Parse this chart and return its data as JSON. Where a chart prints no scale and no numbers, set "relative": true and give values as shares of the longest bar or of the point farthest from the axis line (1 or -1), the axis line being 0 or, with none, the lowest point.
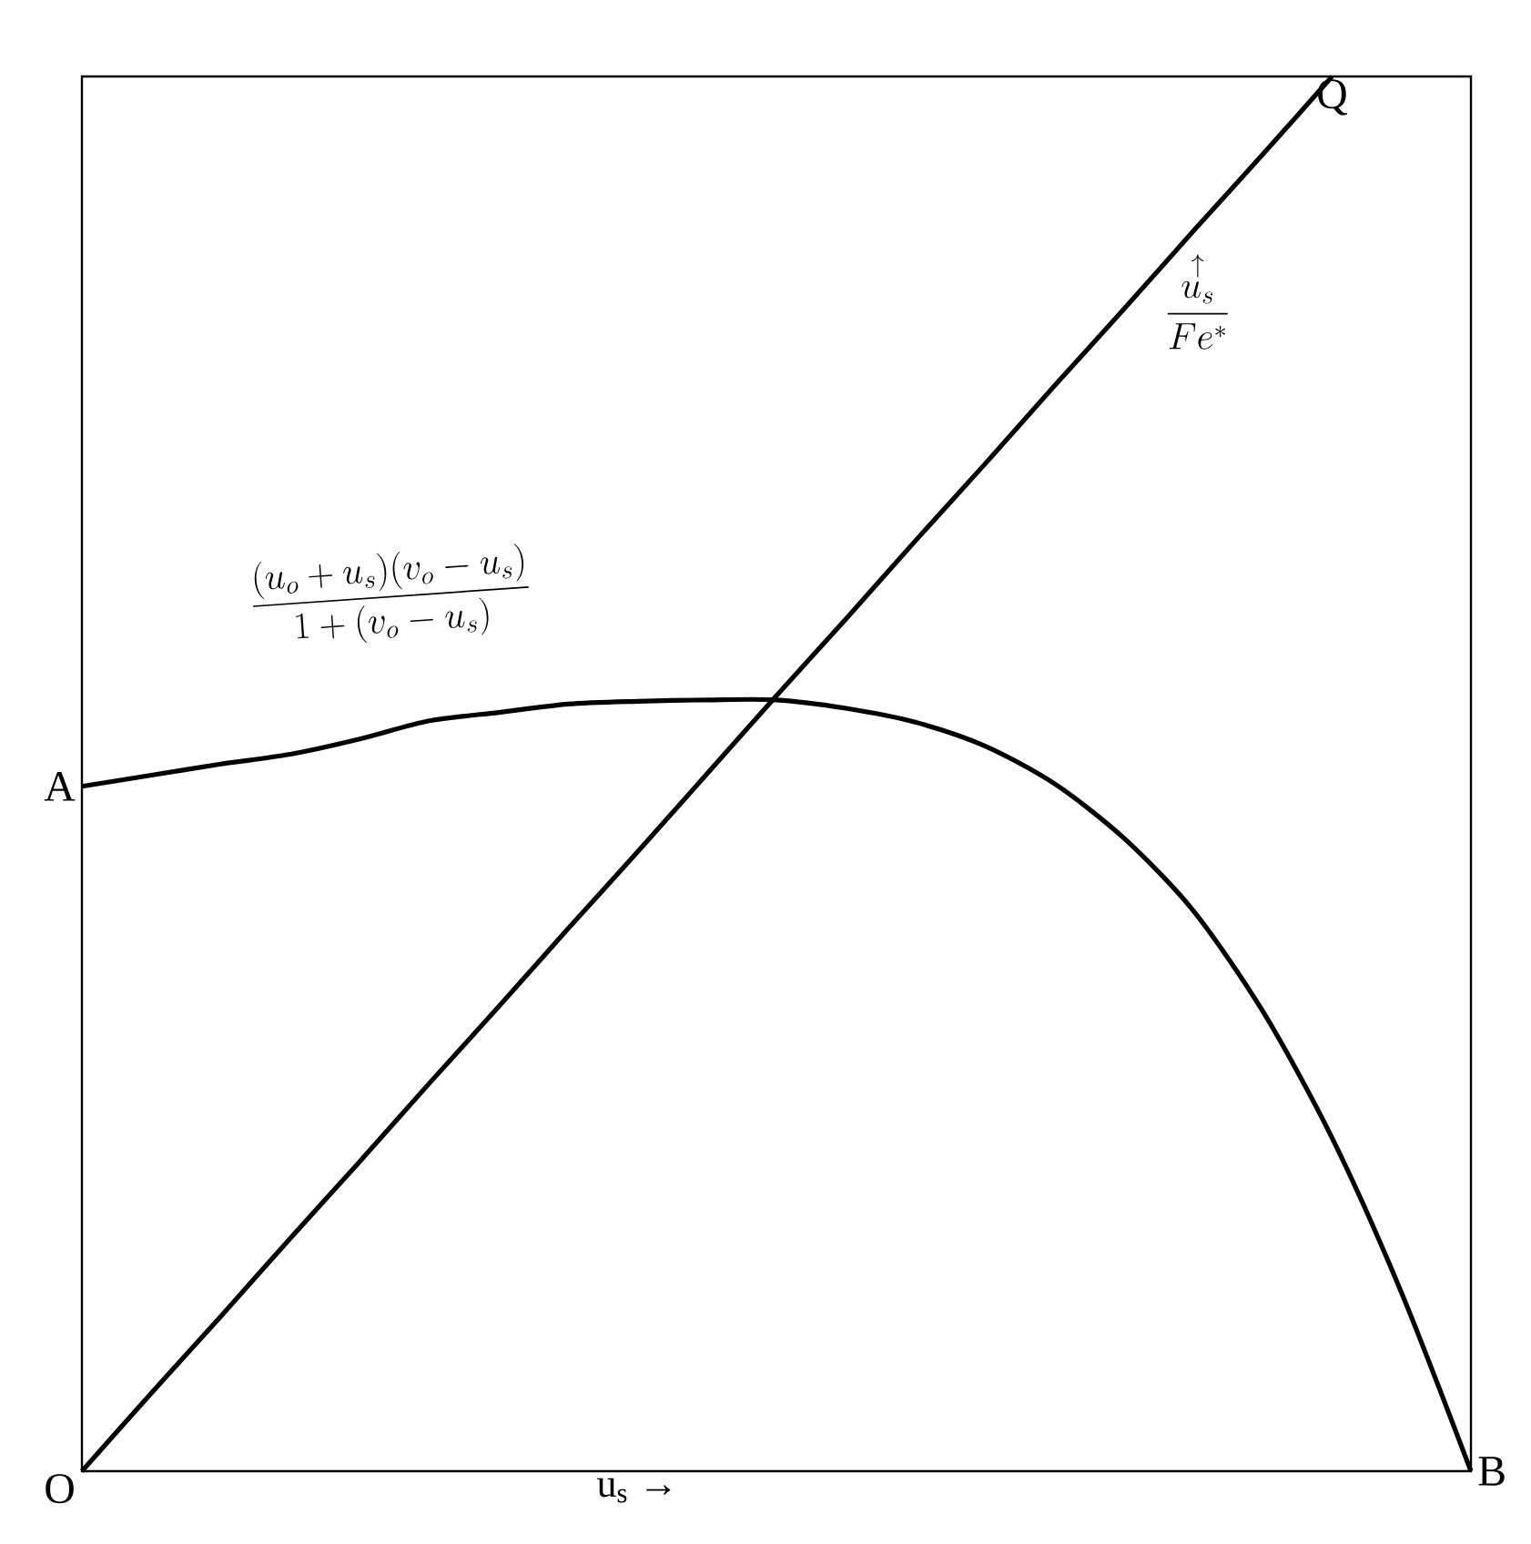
{
  "chart_data": {
    "type": "line",
    "relative": true,
    "xlabel": "u$_{s}$ →",
    "marker": "none",
    "line_style": "solid",
    "categories": [
      null,
      null,
      null,
      null,
      null,
      null,
      null,
      null,
      null,
      null,
      null,
      null,
      null,
      null,
      null,
      null,
      null,
      null,
      null,
      null,
      null
    ],
    "series": [
      {
        "color": "#000000",
        "values": [
          0,
          0.056,
          0.111,
          0.167,
          0.222,
          0.278,
          0.333,
          0.389,
          0.444,
          0.5,
          0.556,
          0.611,
          0.667,
          0.722,
          0.778,
          0.833,
          0.889,
          0.944,
          1,
          null,
          null
        ]
      },
      {
        "color": "#000000",
        "values": [
          0.491,
          0.499,
          0.507,
          0.514,
          0.525,
          0.538,
          0.544,
          0.55,
          0.552,
          0.553,
          0.553,
          0.547,
          0.537,
          0.52,
          0.493,
          0.454,
          0.402,
          0.33,
          0.239,
          0.128,
          0
        ]
      }
    ],
    "annotations": [
      "O",
      "A",
      "B",
      "Q",
      "\\stackrel{\\uparrow}{\\dfrac{u_s}{Fe^{*}}}",
      "\\dfrac{(u_o+u_s)(v_o-u_s)}{1+(v_o-u_s)}"
    ]
  }
}
